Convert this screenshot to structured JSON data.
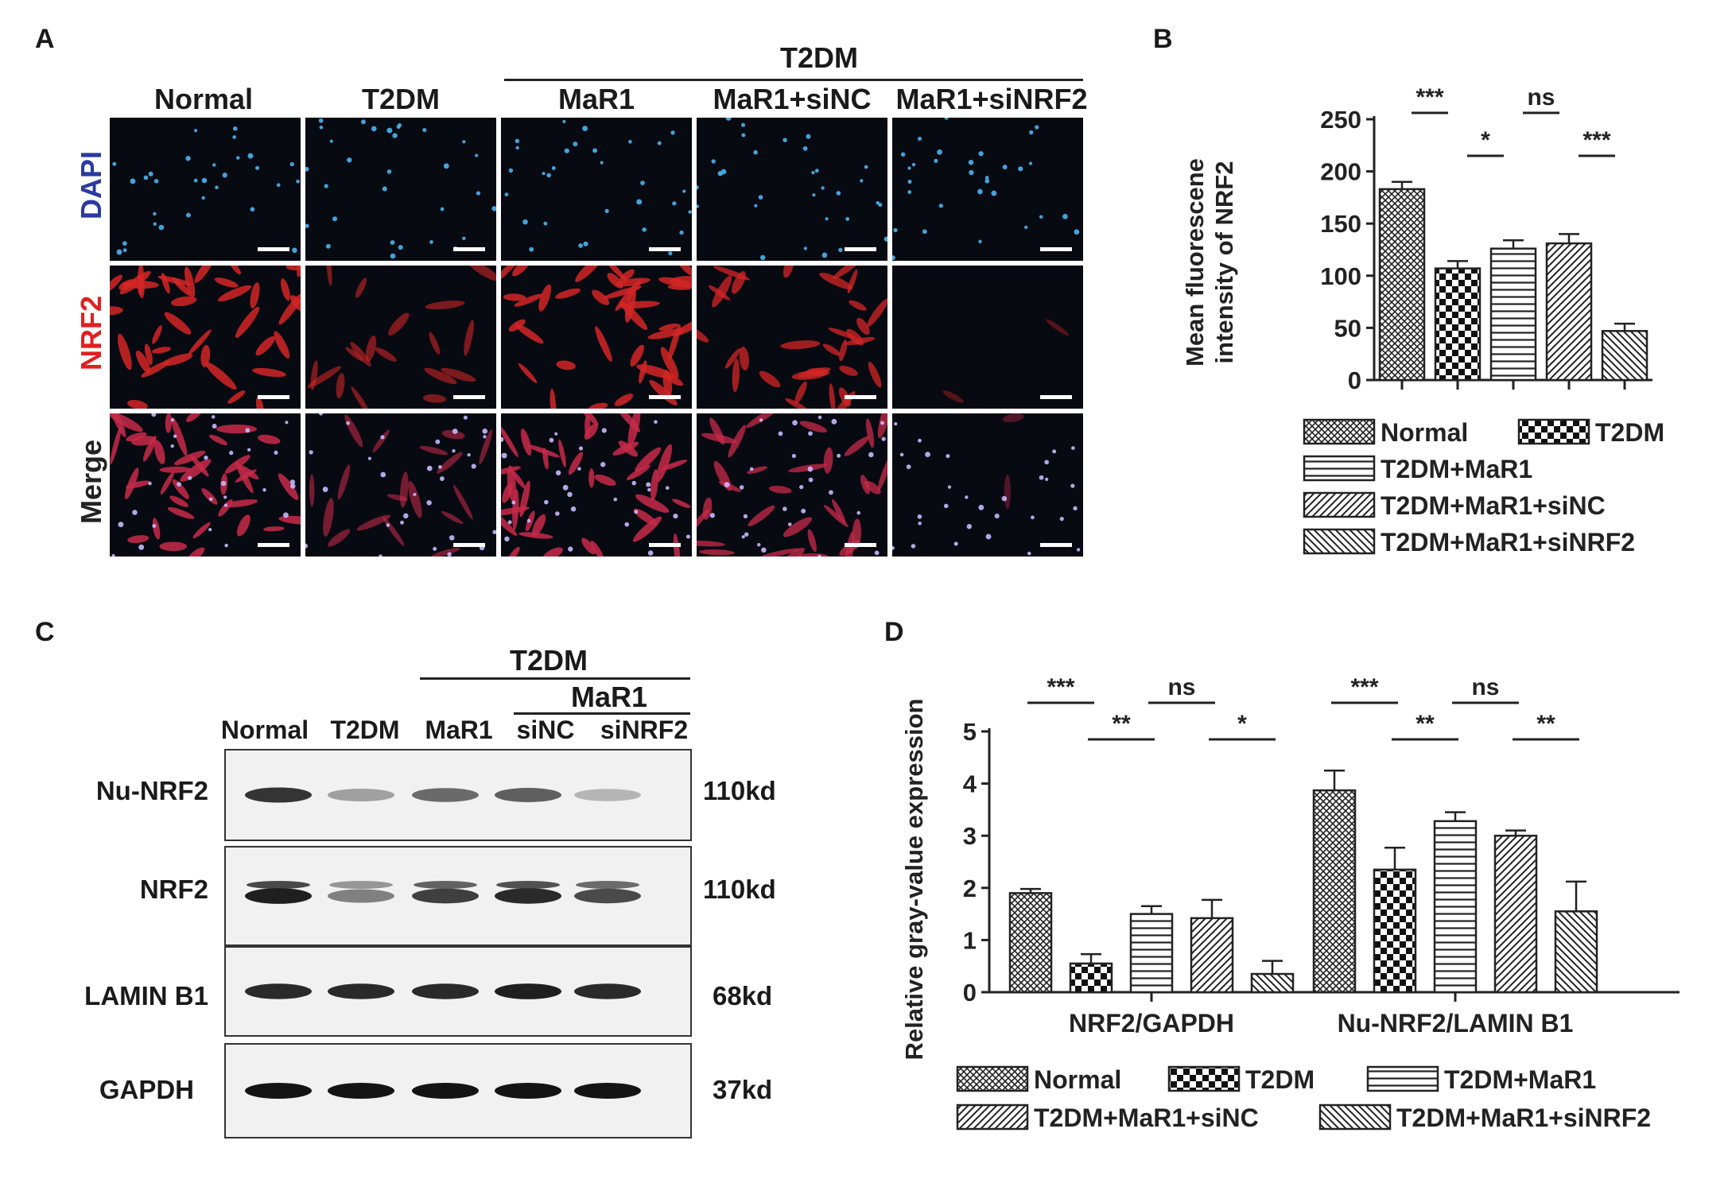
{
  "panels": {
    "a": "A",
    "b": "B",
    "c": "C",
    "d": "D"
  },
  "panel_a": {
    "group_label": "T2DM",
    "columns": [
      "Normal",
      "T2DM",
      "MaR1",
      "MaR1+siNC",
      "MaR1+siNRF2"
    ],
    "rows": [
      {
        "label": "DAPI",
        "color": "#2a3aa0"
      },
      {
        "label": "NRF2",
        "color": "#e02020"
      },
      {
        "label": "Merge",
        "color": "#222222"
      }
    ]
  },
  "panel_c": {
    "group_label": "T2DM",
    "subgroup_label": "MaR1",
    "lanes": [
      "Normal",
      "T2DM",
      "MaR1",
      "siNC",
      "siNRF2"
    ],
    "blots": [
      {
        "protein": "Nu-NRF2",
        "size": "110kd",
        "band_intensity": [
          0.85,
          0.35,
          0.6,
          0.65,
          0.25
        ]
      },
      {
        "protein": "NRF2",
        "size": "110kd",
        "band_intensity": [
          0.95,
          0.5,
          0.8,
          0.9,
          0.75
        ]
      },
      {
        "protein": "LAMIN B1",
        "size": "68kd",
        "band_intensity": [
          0.9,
          0.9,
          0.9,
          0.95,
          0.9
        ]
      },
      {
        "protein": "GAPDH",
        "size": "37kd",
        "band_intensity": [
          1.0,
          1.0,
          1.0,
          1.0,
          1.0
        ]
      }
    ]
  },
  "chart_data": [
    {
      "panel": "B",
      "type": "bar",
      "ylabel": "Mean fluorescene intensity of NRF2",
      "ylabel_lines": [
        "Mean fluorescene",
        "intensity of NRF2"
      ],
      "ylim": [
        0,
        250
      ],
      "yticks": [
        0,
        50,
        100,
        150,
        200,
        250
      ],
      "categories": [
        "Normal",
        "T2DM",
        "T2DM+MaR1",
        "T2DM+MaR1+siNC",
        "T2DM+MaR1+siNRF2"
      ],
      "values": [
        183,
        107,
        126,
        131,
        47
      ],
      "errors": [
        7,
        7,
        8,
        9,
        7
      ],
      "significance": [
        {
          "from": 0,
          "to": 1,
          "label": "***",
          "level": 1
        },
        {
          "from": 1,
          "to": 2,
          "label": "*",
          "level": 0
        },
        {
          "from": 2,
          "to": 3,
          "label": "ns",
          "level": 1
        },
        {
          "from": 3,
          "to": 4,
          "label": "***",
          "level": 0
        }
      ],
      "legend": [
        "Normal",
        "T2DM",
        "T2DM+MaR1",
        "T2DM+MaR1+siNC",
        "T2DM+MaR1+siNRF2"
      ]
    },
    {
      "panel": "D",
      "type": "bar",
      "ylabel": "Relative gray-value expression",
      "ylim": [
        0,
        5
      ],
      "yticks": [
        0,
        1,
        2,
        3,
        4,
        5
      ],
      "groups": [
        "NRF2/GAPDH",
        "Nu-NRF2/LAMIN B1"
      ],
      "series": [
        {
          "name": "Normal",
          "values": [
            1.9,
            3.87
          ],
          "errors": [
            0.08,
            0.38
          ]
        },
        {
          "name": "T2DM",
          "values": [
            0.55,
            2.35
          ],
          "errors": [
            0.18,
            0.42
          ]
        },
        {
          "name": "T2DM+MaR1",
          "values": [
            1.5,
            3.28
          ],
          "errors": [
            0.15,
            0.17
          ]
        },
        {
          "name": "T2DM+MaR1+siNC",
          "values": [
            1.42,
            3.0
          ],
          "errors": [
            0.35,
            0.1
          ]
        },
        {
          "name": "T2DM+MaR1+siNRF2",
          "values": [
            0.35,
            1.55
          ],
          "errors": [
            0.25,
            0.57
          ]
        }
      ],
      "significance": [
        {
          "group": 0,
          "from": 0,
          "to": 1,
          "label": "***",
          "level": 1
        },
        {
          "group": 0,
          "from": 1,
          "to": 2,
          "label": "**",
          "level": 0
        },
        {
          "group": 0,
          "from": 2,
          "to": 3,
          "label": "ns",
          "level": 1
        },
        {
          "group": 0,
          "from": 3,
          "to": 4,
          "label": "*",
          "level": 0
        },
        {
          "group": 1,
          "from": 0,
          "to": 1,
          "label": "***",
          "level": 1
        },
        {
          "group": 1,
          "from": 1,
          "to": 2,
          "label": "**",
          "level": 0
        },
        {
          "group": 1,
          "from": 2,
          "to": 3,
          "label": "ns",
          "level": 1
        },
        {
          "group": 1,
          "from": 3,
          "to": 4,
          "label": "**",
          "level": 0
        }
      ],
      "legend": [
        "Normal",
        "T2DM",
        "T2DM+MaR1",
        "T2DM+MaR1+siNC",
        "T2DM+MaR1+siNRF2"
      ]
    }
  ]
}
